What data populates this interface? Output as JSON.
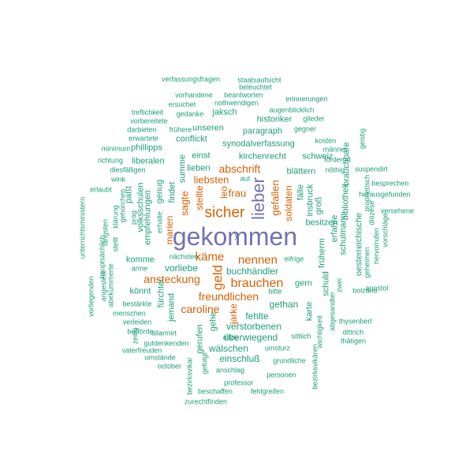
{
  "colors": {
    "teal": "#1b9e77",
    "orange": "#d95f02",
    "purple": "#7570b3"
  },
  "words": [
    {
      "text": "gekommen",
      "color": "purple"
    },
    {
      "text": "lieber",
      "color": "purple"
    },
    {
      "text": "sicher",
      "color": "orange"
    },
    {
      "text": "geld",
      "color": "orange"
    },
    {
      "text": "brauchen",
      "color": "orange"
    },
    {
      "text": "käme",
      "color": "orange"
    },
    {
      "text": "nennen",
      "color": "orange"
    },
    {
      "text": "freundlichen",
      "color": "orange"
    },
    {
      "text": "caroline",
      "color": "orange"
    },
    {
      "text": "ansteckung",
      "color": "orange"
    },
    {
      "text": "abschrift",
      "color": "orange"
    },
    {
      "text": "liebsten",
      "color": "orange"
    },
    {
      "text": "frau",
      "color": "orange"
    },
    {
      "text": "sagte",
      "color": "orange"
    },
    {
      "text": "gefallen",
      "color": "orange"
    },
    {
      "text": "soldaten",
      "color": "orange"
    },
    {
      "text": "stellte",
      "color": "orange"
    },
    {
      "text": "leo",
      "color": "orange"
    },
    {
      "text": "jarke",
      "color": "orange"
    },
    {
      "text": "marien",
      "color": "orange"
    },
    {
      "text": "buchhändler",
      "color": "teal"
    },
    {
      "text": "vorliebe",
      "color": "teal"
    },
    {
      "text": "gethan",
      "color": "teal"
    },
    {
      "text": "fehlte",
      "color": "teal"
    },
    {
      "text": "verstorbenen",
      "color": "teal"
    },
    {
      "text": "überwiegend",
      "color": "teal"
    },
    {
      "text": "einschluß",
      "color": "teal"
    },
    {
      "text": "wälschen",
      "color": "teal"
    },
    {
      "text": "gerufen",
      "color": "teal"
    },
    {
      "text": "gehe",
      "color": "teal"
    },
    {
      "text": "könnt",
      "color": "teal"
    },
    {
      "text": "komme",
      "color": "teal"
    },
    {
      "text": "jemand",
      "color": "teal"
    },
    {
      "text": "fürchtet",
      "color": "teal"
    },
    {
      "text": "empfehlungen",
      "color": "teal"
    },
    {
      "text": "volksschulen",
      "color": "teal"
    },
    {
      "text": "paßt",
      "color": "teal"
    },
    {
      "text": "genug",
      "color": "teal"
    },
    {
      "text": "findet",
      "color": "teal"
    },
    {
      "text": "summe",
      "color": "teal"
    },
    {
      "text": "lieben",
      "color": "teal"
    },
    {
      "text": "einst",
      "color": "teal"
    },
    {
      "text": "liberalen",
      "color": "teal"
    },
    {
      "text": "phillipps",
      "color": "teal"
    },
    {
      "text": "conflickt",
      "color": "teal"
    },
    {
      "text": "unseren",
      "color": "teal"
    },
    {
      "text": "jaksch",
      "color": "teal"
    },
    {
      "text": "paragraph",
      "color": "teal"
    },
    {
      "text": "historiker",
      "color": "teal"
    },
    {
      "text": "synodalverfassung",
      "color": "teal"
    },
    {
      "text": "kirchenrecht",
      "color": "teal"
    },
    {
      "text": "schweiz",
      "color": "teal"
    },
    {
      "text": "blättern",
      "color": "teal"
    },
    {
      "text": "fälle",
      "color": "teal"
    },
    {
      "text": "insbruck",
      "color": "teal"
    },
    {
      "text": "früherm",
      "color": "teal"
    },
    {
      "text": "groß",
      "color": "teal"
    },
    {
      "text": "besitzen",
      "color": "teal"
    },
    {
      "text": "erfahre",
      "color": "teal"
    },
    {
      "text": "bibliothek",
      "color": "teal"
    },
    {
      "text": "schulmann",
      "color": "teal"
    },
    {
      "text": "brauchbare",
      "color": "teal"
    },
    {
      "text": "oesterreichische",
      "color": "teal"
    },
    {
      "text": "schuld",
      "color": "teal"
    },
    {
      "text": "gern",
      "color": "teal"
    },
    {
      "text": "karte",
      "color": "teal"
    },
    {
      "text": "verfassungsfragen",
      "color": "teal"
    },
    {
      "text": "staatsaufsicht",
      "color": "teal"
    },
    {
      "text": "beleuchtet",
      "color": "teal"
    },
    {
      "text": "vorhandene",
      "color": "teal"
    },
    {
      "text": "beantworten",
      "color": "teal"
    },
    {
      "text": "erinnerungen",
      "color": "teal"
    },
    {
      "text": "ersuchet",
      "color": "teal"
    },
    {
      "text": "nothwendigen",
      "color": "teal"
    },
    {
      "text": "augenblicklich",
      "color": "teal"
    },
    {
      "text": "treflichkeit",
      "color": "teal"
    },
    {
      "text": "gedanke",
      "color": "teal"
    },
    {
      "text": "glieder",
      "color": "teal"
    },
    {
      "text": "vorbereitete",
      "color": "teal"
    },
    {
      "text": "gegner",
      "color": "teal"
    },
    {
      "text": "darbieten",
      "color": "teal"
    },
    {
      "text": "frühere",
      "color": "teal"
    },
    {
      "text": "erwartete",
      "color": "teal"
    },
    {
      "text": "kosten",
      "color": "teal"
    },
    {
      "text": "minimum",
      "color": "teal"
    },
    {
      "text": "männer",
      "color": "teal"
    },
    {
      "text": "richtung",
      "color": "teal"
    },
    {
      "text": "fördernd",
      "color": "teal"
    },
    {
      "text": "diesfälligen",
      "color": "teal"
    },
    {
      "text": "nöthig",
      "color": "teal"
    },
    {
      "text": "suspendirt",
      "color": "teal"
    },
    {
      "text": "wink",
      "color": "teal"
    },
    {
      "text": "geistig",
      "color": "teal"
    },
    {
      "text": "besprechen",
      "color": "teal"
    },
    {
      "text": "erlaubt",
      "color": "teal"
    },
    {
      "text": "herausgefunden",
      "color": "teal"
    },
    {
      "text": "prophetisch",
      "color": "teal"
    },
    {
      "text": "versehene",
      "color": "teal"
    },
    {
      "text": "diözese",
      "color": "teal"
    },
    {
      "text": "vorschläge",
      "color": "teal"
    },
    {
      "text": "hervorrufen",
      "color": "teal"
    },
    {
      "text": "geheimen",
      "color": "teal"
    },
    {
      "text": "apostol",
      "color": "teal"
    },
    {
      "text": "zwei",
      "color": "teal"
    },
    {
      "text": "bolzano",
      "color": "teal"
    },
    {
      "text": "dittrich",
      "color": "teal"
    },
    {
      "text": "thysenbert",
      "color": "teal"
    },
    {
      "text": "thätigen",
      "color": "teal"
    },
    {
      "text": "abgesandter",
      "color": "teal"
    },
    {
      "text": "wichtigkeit",
      "color": "teal"
    },
    {
      "text": "bezirksvikären",
      "color": "teal"
    },
    {
      "text": "grundliche",
      "color": "teal"
    },
    {
      "text": "umsturz",
      "color": "teal"
    },
    {
      "text": "personen",
      "color": "teal"
    },
    {
      "text": "sittlich",
      "color": "teal"
    },
    {
      "text": "bitte",
      "color": "teal"
    },
    {
      "text": "eifrige",
      "color": "teal"
    },
    {
      "text": "allzu",
      "color": "teal"
    },
    {
      "text": "anschlag",
      "color": "teal"
    },
    {
      "text": "professor",
      "color": "teal"
    },
    {
      "text": "beschaffen",
      "color": "teal"
    },
    {
      "text": "fehlgreifen",
      "color": "teal"
    },
    {
      "text": "zurechtfinden",
      "color": "teal"
    },
    {
      "text": "gefolgt",
      "color": "teal"
    },
    {
      "text": "bezirksvikar",
      "color": "teal"
    },
    {
      "text": "october",
      "color": "teal"
    },
    {
      "text": "umstände",
      "color": "teal"
    },
    {
      "text": "vaterfreuden",
      "color": "teal"
    },
    {
      "text": "zeitig",
      "color": "teal"
    },
    {
      "text": "gutdenkenden",
      "color": "teal"
    },
    {
      "text": "behörde",
      "color": "teal"
    },
    {
      "text": "allarmirt",
      "color": "teal"
    },
    {
      "text": "verleiden",
      "color": "teal"
    },
    {
      "text": "menschen",
      "color": "teal"
    },
    {
      "text": "bestärkte",
      "color": "teal"
    },
    {
      "text": "angestellt",
      "color": "teal"
    },
    {
      "text": "abekümmerte",
      "color": "teal"
    },
    {
      "text": "vorliegenden",
      "color": "teal"
    },
    {
      "text": "unterrichtsministern",
      "color": "teal"
    },
    {
      "text": "längsten",
      "color": "teal"
    },
    {
      "text": "hauptsächlich",
      "color": "teal"
    },
    {
      "text": "stellt",
      "color": "teal"
    },
    {
      "text": "klärung",
      "color": "teal"
    },
    {
      "text": "gehorchen",
      "color": "teal"
    },
    {
      "text": "prag",
      "color": "teal"
    },
    {
      "text": "erhalte",
      "color": "teal"
    },
    {
      "text": "arme",
      "color": "teal"
    },
    {
      "text": "nächsten",
      "color": "teal"
    },
    {
      "text": "aut",
      "color": "teal"
    },
    {
      "text": "y",
      "color": "teal"
    }
  ]
}
